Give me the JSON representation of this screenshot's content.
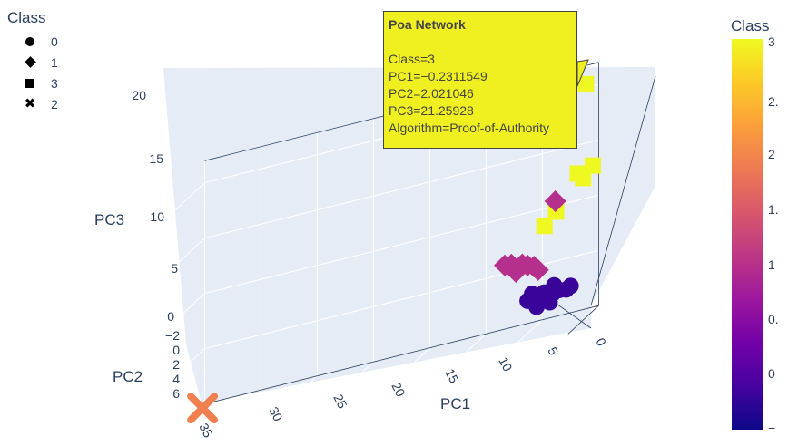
{
  "legend": {
    "title": "Class",
    "items": [
      {
        "label": "0",
        "symbol": "circle"
      },
      {
        "label": "1",
        "symbol": "diamond"
      },
      {
        "label": "3",
        "symbol": "square"
      },
      {
        "label": "2",
        "symbol": "x"
      }
    ]
  },
  "hover": {
    "title": "Poa Network",
    "lines": {
      "class": "Class=3",
      "pc1": "PC1=−0.2311549",
      "pc2": "PC2=2.021046",
      "pc3": "PC3=21.25928",
      "algorithm": "Algorithm=Proof-of-Authority"
    }
  },
  "colorbar": {
    "title": "Class",
    "tick_labels": [
      "3",
      "2.",
      "2",
      "1.",
      "1",
      "0.",
      "0",
      "−"
    ],
    "colors": [
      "#0d0887",
      "#46039f",
      "#7201a8",
      "#9c179e",
      "#bd3786",
      "#d8576b",
      "#ed7953",
      "#fb9f3a",
      "#fdca26",
      "#f0f921"
    ]
  },
  "chart_data": {
    "type": "scatter3d",
    "axes": {
      "x": {
        "label": "PC1",
        "ticks": [
          "35",
          "30",
          "25",
          "20",
          "15",
          "10",
          "5",
          "0"
        ]
      },
      "y": {
        "label": "PC2",
        "ticks": [
          "−2",
          "0",
          "2",
          "4",
          "6"
        ]
      },
      "z": {
        "label": "PC3",
        "ticks": [
          "0",
          "5",
          "10",
          "15",
          "20"
        ]
      }
    },
    "color_scale": {
      "min": 0,
      "max": 3
    },
    "series": [
      {
        "name": "0",
        "symbol": "circle",
        "color": "#3a049a",
        "points": [
          [
            2.5,
            1.0,
            3.0
          ],
          [
            3.0,
            0.8,
            3.5
          ],
          [
            3.5,
            1.2,
            2.5
          ],
          [
            4.0,
            0.5,
            3.0
          ],
          [
            4.5,
            1.0,
            2.0
          ],
          [
            5.0,
            0.7,
            3.2
          ],
          [
            2.0,
            0.6,
            2.8
          ],
          [
            1.5,
            0.9,
            3.1
          ],
          [
            5.5,
            0.4,
            2.6
          ],
          [
            3.2,
            1.4,
            2.2
          ],
          [
            4.2,
            1.6,
            2.4
          ],
          [
            2.8,
            1.8,
            3.0
          ]
        ]
      },
      {
        "name": "1",
        "symbol": "diamond",
        "color": "#b52f8c",
        "points": [
          [
            8.0,
            -1.0,
            6.0
          ],
          [
            3.0,
            0.5,
            11.0
          ],
          [
            5.0,
            0.2,
            5.5
          ],
          [
            5.5,
            0.4,
            5.8
          ],
          [
            6.0,
            0.3,
            6.0
          ],
          [
            6.5,
            0.5,
            5.5
          ],
          [
            7.0,
            0.2,
            6.2
          ],
          [
            4.5,
            0.6,
            5.2
          ]
        ]
      },
      {
        "name": "3",
        "symbol": "square",
        "color": "#eff821",
        "points": [
          [
            -0.2311549,
            2.021046,
            21.25928
          ],
          [
            1.0,
            0.5,
            13.0
          ],
          [
            0.5,
            0.6,
            12.5
          ],
          [
            -0.5,
            1.0,
            13.5
          ],
          [
            3.0,
            0.3,
            10.0
          ],
          [
            4.0,
            0.4,
            9.0
          ]
        ]
      },
      {
        "name": "2",
        "symbol": "x",
        "color": "#f0804f",
        "points": [
          [
            34.0,
            1.5,
            0.5
          ]
        ]
      }
    ]
  }
}
